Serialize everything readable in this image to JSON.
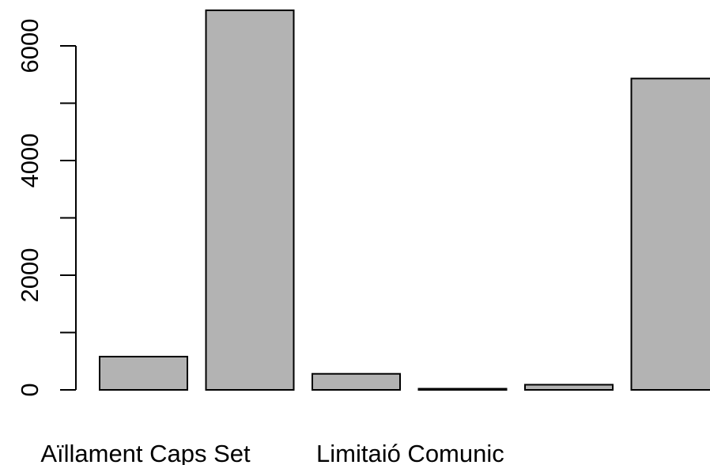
{
  "chart_data": {
    "type": "bar",
    "title": "",
    "xlabel": "",
    "ylabel": "",
    "categories": [
      "Aïllament",
      "Caps Set",
      "",
      "Limitaió Comunic",
      "",
      ""
    ],
    "values": [
      580,
      6620,
      280,
      20,
      90,
      5430
    ],
    "ylim": [
      0,
      6700
    ],
    "yticks": [
      0,
      1000,
      2000,
      3000,
      4000,
      5000,
      6000
    ],
    "ytick_labels": [
      "0",
      "",
      "2000",
      "",
      "4000",
      "",
      "6000"
    ],
    "bar_color": "#b3b3b3",
    "grid": false,
    "legend": "none"
  }
}
